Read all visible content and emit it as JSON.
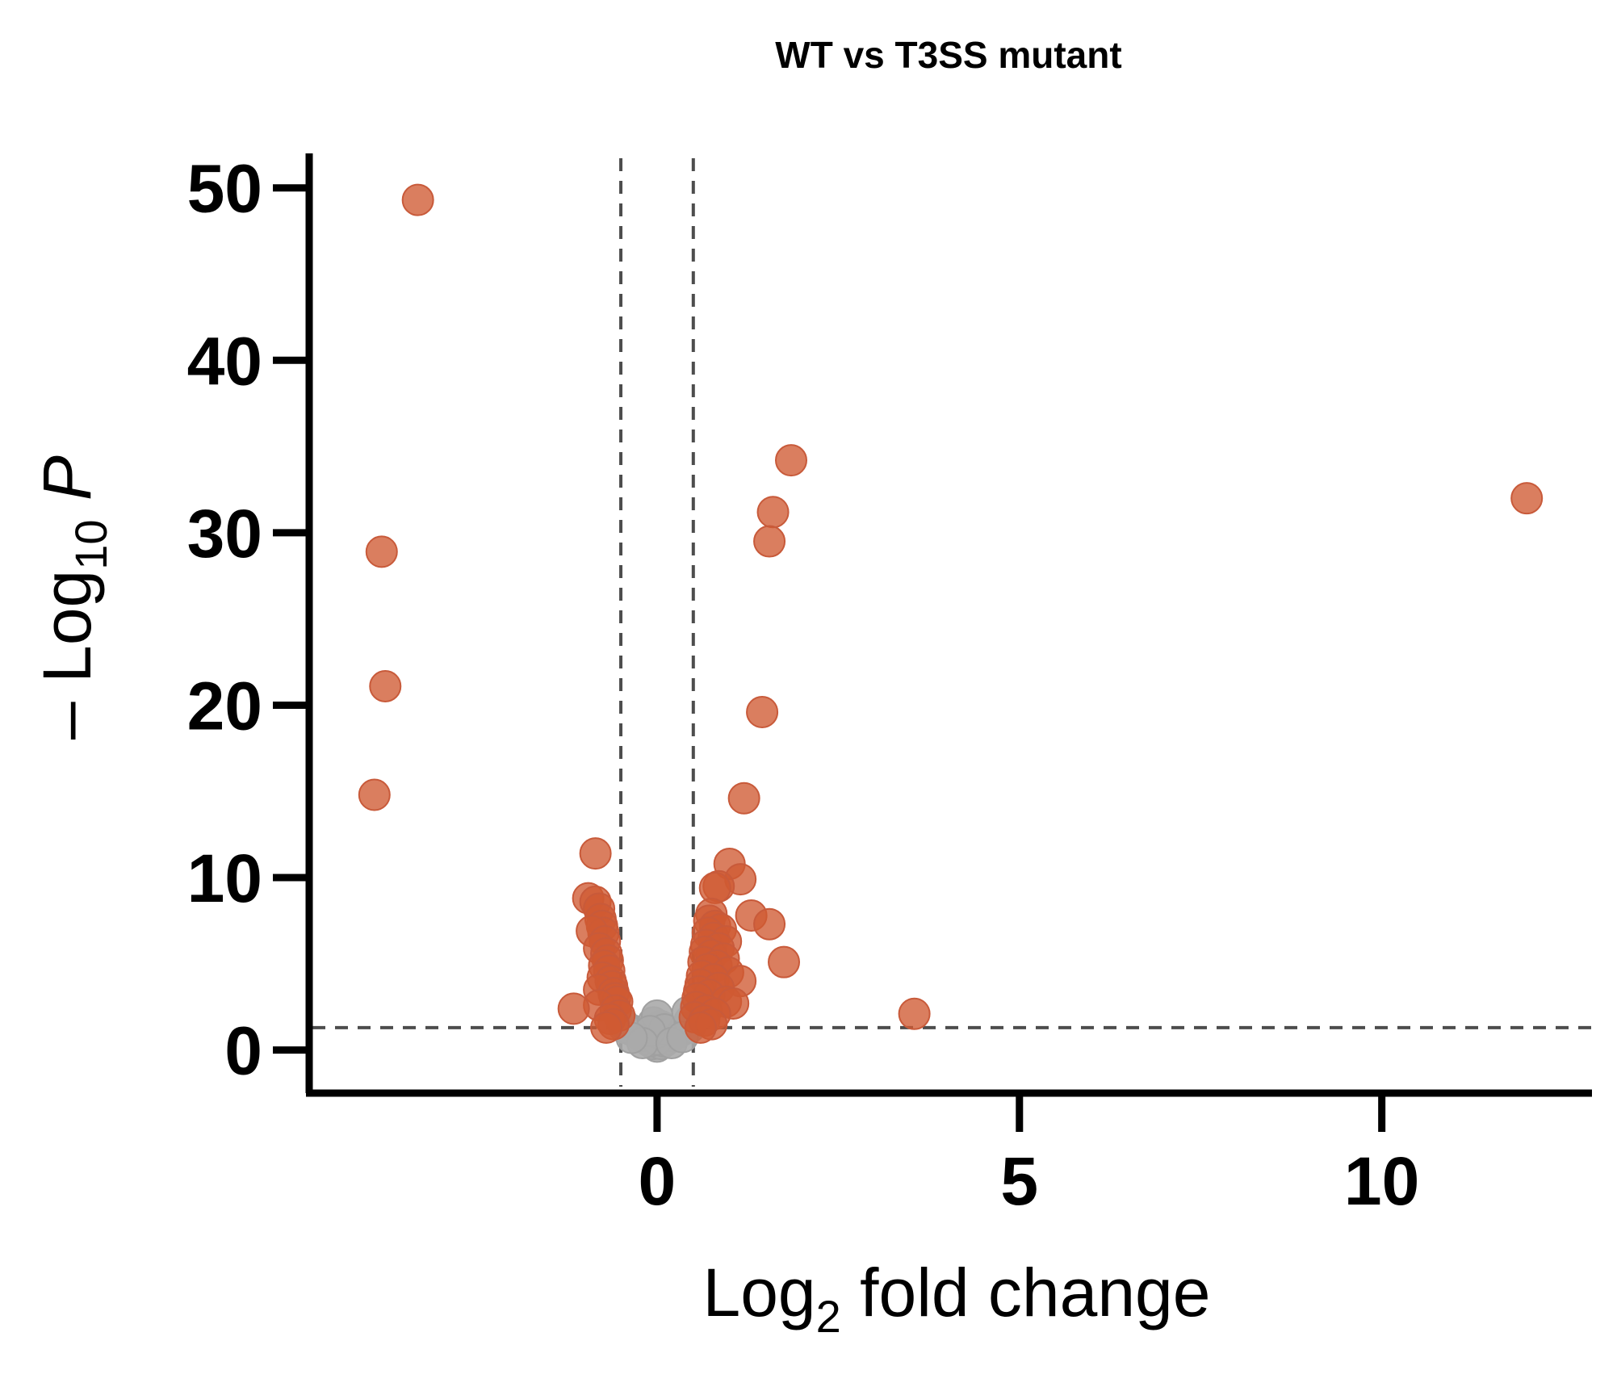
{
  "chart_data": {
    "type": "scatter",
    "title": "WT vs T3SS mutant",
    "xlabel": {
      "main": "Log",
      "sub": "2",
      "rest": " fold change"
    },
    "ylabel": {
      "prefix": "– Log",
      "sub": "10",
      "rest": " P"
    },
    "xlim": [
      -4.8,
      12.9
    ],
    "ylim": [
      -2.5,
      52
    ],
    "x_ticks": [
      0,
      5,
      10
    ],
    "x_tick_labels": [
      "0",
      "5",
      "10"
    ],
    "y_ticks": [
      0,
      10,
      20,
      30,
      40,
      50
    ],
    "y_tick_labels": [
      "0",
      "10",
      "20",
      "30",
      "40",
      "50"
    ],
    "thresholds": {
      "x": [
        -0.5,
        0.5
      ],
      "y": 1.3
    },
    "grid": false,
    "legend": "none",
    "colors": {
      "significant": "#cf5a32",
      "not_significant": "#aaaaaa",
      "threshold": "#4d4d4d",
      "axis": "#000000"
    },
    "series": [
      {
        "role": "significant",
        "points": [
          [
            -3.3,
            49.3
          ],
          [
            -3.8,
            28.9
          ],
          [
            -3.75,
            21.1
          ],
          [
            -3.9,
            14.8
          ],
          [
            -0.85,
            11.4
          ],
          [
            -0.95,
            8.8
          ],
          [
            -0.85,
            8.6
          ],
          [
            -0.8,
            8.2
          ],
          [
            -0.78,
            7.6
          ],
          [
            -0.76,
            7.2
          ],
          [
            -0.74,
            6.8
          ],
          [
            -0.9,
            6.9
          ],
          [
            -0.72,
            6.3
          ],
          [
            -0.8,
            5.9
          ],
          [
            -0.7,
            5.6
          ],
          [
            -0.68,
            5.2
          ],
          [
            -0.73,
            4.9
          ],
          [
            -0.66,
            4.6
          ],
          [
            -0.75,
            4.2
          ],
          [
            -0.64,
            4.0
          ],
          [
            -0.62,
            3.7
          ],
          [
            -0.8,
            3.5
          ],
          [
            -0.6,
            3.3
          ],
          [
            -0.58,
            3.0
          ],
          [
            -0.55,
            2.8
          ],
          [
            -0.8,
            2.6
          ],
          [
            -1.15,
            2.4
          ],
          [
            -0.57,
            2.3
          ],
          [
            -0.52,
            2.0
          ],
          [
            -0.65,
            1.8
          ],
          [
            -0.6,
            1.5
          ],
          [
            -0.7,
            1.3
          ],
          [
            1.85,
            34.2
          ],
          [
            1.6,
            31.2
          ],
          [
            1.55,
            29.5
          ],
          [
            12.0,
            32.0
          ],
          [
            1.45,
            19.6
          ],
          [
            1.2,
            14.6
          ],
          [
            1.0,
            10.8
          ],
          [
            1.15,
            9.9
          ],
          [
            0.85,
            9.5
          ],
          [
            0.8,
            9.4
          ],
          [
            1.3,
            7.8
          ],
          [
            1.55,
            7.3
          ],
          [
            1.75,
            5.1
          ],
          [
            3.55,
            2.1
          ],
          [
            0.75,
            7.9
          ],
          [
            0.72,
            7.5
          ],
          [
            0.8,
            7.2
          ],
          [
            0.88,
            7.0
          ],
          [
            0.7,
            6.8
          ],
          [
            0.78,
            6.5
          ],
          [
            0.95,
            6.3
          ],
          [
            0.68,
            6.1
          ],
          [
            0.85,
            5.9
          ],
          [
            0.66,
            5.7
          ],
          [
            0.75,
            5.5
          ],
          [
            0.92,
            5.3
          ],
          [
            0.64,
            5.1
          ],
          [
            0.82,
            4.9
          ],
          [
            0.7,
            4.7
          ],
          [
            0.98,
            4.5
          ],
          [
            0.62,
            4.3
          ],
          [
            0.78,
            4.1
          ],
          [
            1.15,
            4.0
          ],
          [
            0.6,
            3.8
          ],
          [
            0.85,
            3.6
          ],
          [
            0.58,
            3.4
          ],
          [
            0.72,
            3.2
          ],
          [
            0.56,
            3.0
          ],
          [
            0.95,
            2.8
          ],
          [
            1.05,
            2.7
          ],
          [
            0.54,
            2.5
          ],
          [
            0.68,
            2.3
          ],
          [
            0.8,
            2.1
          ],
          [
            0.52,
            1.9
          ],
          [
            0.65,
            1.7
          ],
          [
            0.75,
            1.5
          ],
          [
            0.6,
            1.3
          ]
        ]
      },
      {
        "role": "not_significant",
        "points": [
          [
            0.0,
            0.2
          ],
          [
            -0.05,
            0.35
          ],
          [
            0.05,
            0.35
          ],
          [
            -0.1,
            0.5
          ],
          [
            0.1,
            0.5
          ],
          [
            -0.15,
            0.65
          ],
          [
            0.15,
            0.65
          ],
          [
            -0.2,
            0.8
          ],
          [
            0.2,
            0.8
          ],
          [
            -0.25,
            0.95
          ],
          [
            0.25,
            0.95
          ],
          [
            -0.3,
            1.05
          ],
          [
            0.3,
            1.05
          ],
          [
            -0.35,
            1.15
          ],
          [
            0.35,
            1.15
          ],
          [
            -0.4,
            1.25
          ],
          [
            0.4,
            1.25
          ],
          [
            -0.45,
            1.3
          ],
          [
            0.45,
            1.3
          ],
          [
            0.0,
            0.6
          ],
          [
            0.0,
            1.0
          ],
          [
            0.05,
            1.4
          ],
          [
            -0.05,
            1.6
          ],
          [
            0.0,
            2.0
          ],
          [
            0.1,
            1.2
          ],
          [
            -0.1,
            1.1
          ],
          [
            -0.48,
            1.6
          ],
          [
            0.45,
            1.7
          ],
          [
            0.42,
            2.2
          ],
          [
            -0.2,
            0.4
          ],
          [
            0.2,
            0.4
          ],
          [
            -0.35,
            0.7
          ],
          [
            0.35,
            0.75
          ]
        ]
      }
    ]
  }
}
